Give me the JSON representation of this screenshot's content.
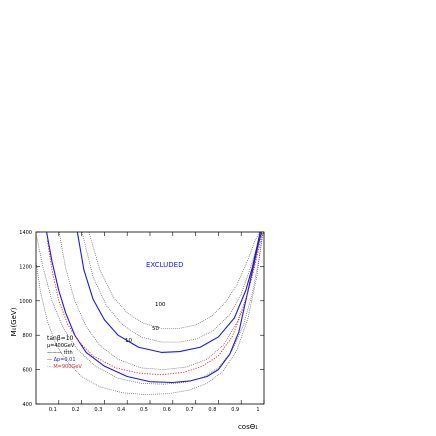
{
  "chart_data": {
    "type": "line",
    "xlabel": "cosΘ₁",
    "ylabel": "M₀(GeV)",
    "xlim": [
      0,
      1
    ],
    "ylim": [
      400,
      1400
    ],
    "x_ticks": [
      "0.1",
      "0.2",
      "0.3",
      "0.4",
      "0.5",
      "0.6",
      "0.7",
      "0.8",
      "0.9",
      "1"
    ],
    "y_ticks": [
      "400",
      "600",
      "800",
      "1000",
      "1200",
      "1400"
    ],
    "grid": false,
    "annotations": {
      "excluded": "EXCLUDED",
      "label_100": "100",
      "label_50": "50",
      "label_10": "10"
    },
    "legend": {
      "position": "lower-left",
      "lines": [
        "tanβ=10",
        "μ=400GeV",
        "——— tt̄th",
        "— Δp=0.01",
        "··· M=900GeV"
      ]
    },
    "colors": {
      "axis": "#000000",
      "blue": "#1a1adb",
      "red": "#d42a2a",
      "dotted": "#444444"
    },
    "series": [
      {
        "style": "blue-solid-outer",
        "x": [
          0.045,
          0.07,
          0.1,
          0.13,
          0.17,
          0.22,
          0.3,
          0.4,
          0.5,
          0.6,
          0.68,
          0.75,
          0.8,
          0.85,
          0.89,
          0.92,
          0.95,
          0.975,
          0.992
        ],
        "y": [
          1410,
          1230,
          1060,
          930,
          800,
          700,
          620,
          560,
          530,
          525,
          535,
          560,
          600,
          690,
          820,
          1000,
          1180,
          1330,
          1410
        ]
      },
      {
        "style": "blue-solid-inner",
        "x": [
          0.18,
          0.21,
          0.25,
          0.3,
          0.36,
          0.45,
          0.55,
          0.63,
          0.72,
          0.8,
          0.87,
          0.92,
          0.95,
          0.97,
          0.985
        ],
        "y": [
          1410,
          1180,
          1010,
          890,
          800,
          730,
          700,
          705,
          730,
          790,
          900,
          1060,
          1200,
          1320,
          1410
        ]
      },
      {
        "style": "red-dotted",
        "x": [
          0.05,
          0.07,
          0.1,
          0.14,
          0.19,
          0.25,
          0.35,
          0.45,
          0.55,
          0.65,
          0.73,
          0.8,
          0.86,
          0.91,
          0.95,
          0.98,
          0.995
        ],
        "y": [
          1350,
          1180,
          1000,
          860,
          760,
          680,
          610,
          580,
          570,
          585,
          620,
          680,
          790,
          960,
          1150,
          1320,
          1410
        ]
      },
      {
        "style": "black-dotted-100",
        "x": [
          0.23,
          0.28,
          0.34,
          0.4,
          0.47,
          0.55,
          0.63,
          0.7,
          0.77,
          0.83,
          0.88,
          0.93,
          0.96,
          0.985
        ],
        "y": [
          1410,
          1180,
          1020,
          930,
          870,
          840,
          840,
          860,
          910,
          990,
          1090,
          1240,
          1350,
          1410
        ]
      },
      {
        "style": "black-dotted-50",
        "x": [
          0.2,
          0.25,
          0.31,
          0.38,
          0.46,
          0.55,
          0.63,
          0.71,
          0.78,
          0.85,
          0.9,
          0.94,
          0.97,
          0.99
        ],
        "y": [
          1410,
          1140,
          970,
          860,
          790,
          760,
          760,
          780,
          830,
          920,
          1040,
          1190,
          1320,
          1410
        ]
      },
      {
        "style": "black-dotted-10",
        "x": [
          0.1,
          0.13,
          0.17,
          0.22,
          0.28,
          0.36,
          0.46,
          0.56,
          0.66,
          0.75,
          0.82,
          0.88,
          0.93,
          0.965,
          0.99
        ],
        "y": [
          1410,
          1190,
          1000,
          850,
          740,
          660,
          610,
          600,
          615,
          660,
          740,
          870,
          1050,
          1250,
          1410
        ]
      },
      {
        "style": "black-dotted-lower",
        "x": [
          0.0,
          0.03,
          0.07,
          0.12,
          0.18,
          0.26,
          0.36,
          0.46,
          0.56,
          0.65,
          0.73,
          0.8,
          0.86,
          0.91,
          0.95,
          0.98,
          0.998
        ],
        "y": [
          1390,
          1200,
          1000,
          840,
          720,
          620,
          550,
          520,
          515,
          525,
          555,
          610,
          710,
          860,
          1050,
          1260,
          1410
        ]
      },
      {
        "style": "black-dotted-far",
        "x": [
          0.0,
          0.02,
          0.05,
          0.09,
          0.14,
          0.2,
          0.28,
          0.38,
          0.48,
          0.58,
          0.67,
          0.75,
          0.82,
          0.88,
          0.93,
          0.97,
          0.995
        ],
        "y": [
          1230,
          1050,
          880,
          740,
          640,
          560,
          500,
          465,
          455,
          460,
          480,
          520,
          590,
          710,
          900,
          1150,
          1410
        ]
      }
    ]
  }
}
